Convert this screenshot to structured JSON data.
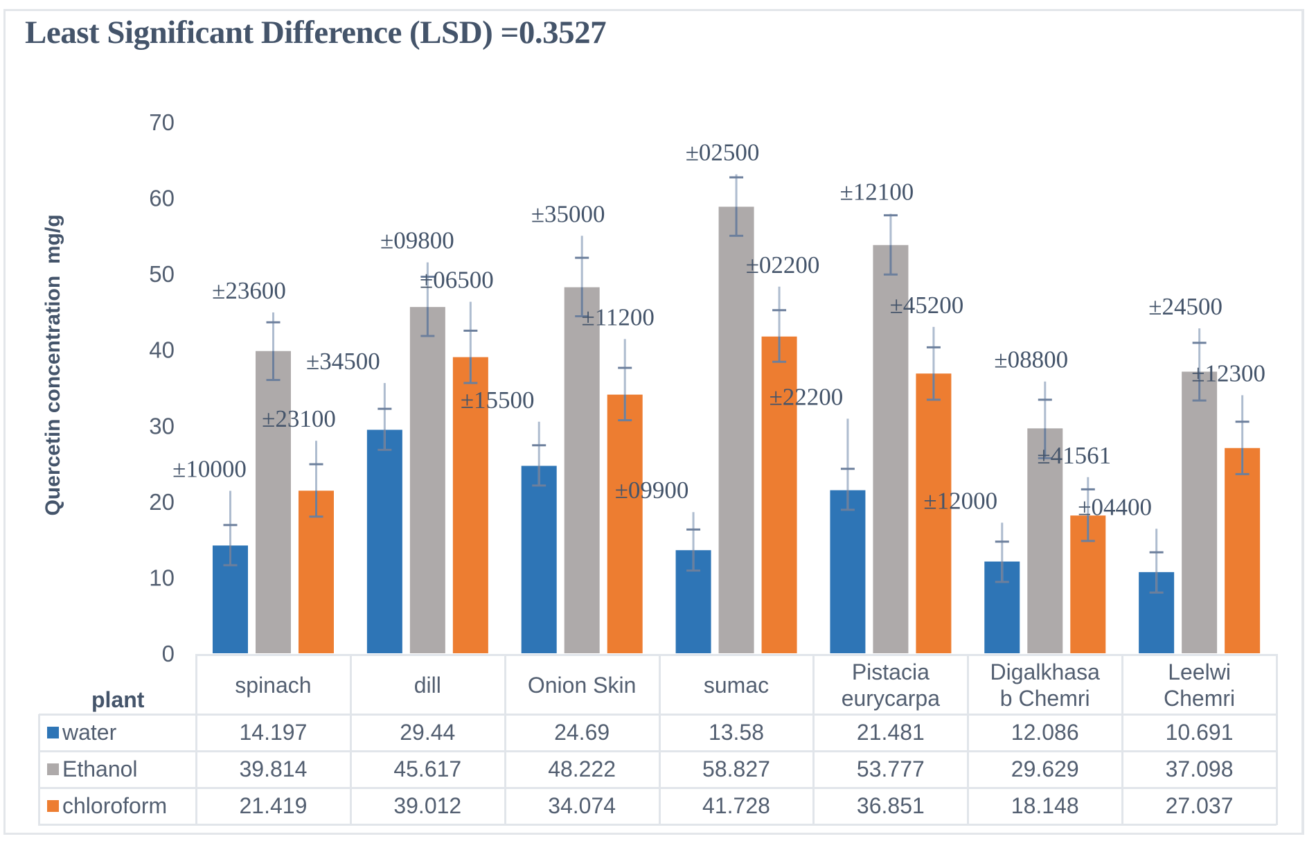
{
  "chart_data": {
    "type": "bar",
    "title": "Least Significant Difference (LSD) =0.3527",
    "xlabel": "plant",
    "ylabel": "Quercetin concentration  mg/g",
    "ylim": [
      0,
      70
    ],
    "yticks": [
      0,
      10,
      20,
      30,
      40,
      50,
      60,
      70
    ],
    "grid": false,
    "legend": "data-table-left",
    "categories": [
      "spinach",
      "dill",
      "Onion Skin",
      "sumac",
      "Pistacia eurycarpa",
      "Digalkhasa b Chemri",
      "Leelwi Chemri"
    ],
    "category_lines": [
      [
        "spinach"
      ],
      [
        "dill"
      ],
      [
        "Onion Skin"
      ],
      [
        "sumac"
      ],
      [
        "Pistacia",
        "eurycarpa"
      ],
      [
        "Digalkhasa",
        "b Chemri"
      ],
      [
        "Leelwi",
        "Chemri"
      ]
    ],
    "series": [
      {
        "name": "water",
        "color": "#2e75b6",
        "values": [
          14.197,
          29.44,
          24.69,
          13.58,
          21.481,
          12.086,
          10.691
        ],
        "value_labels": [
          "14.197",
          "29.44",
          "24.69",
          "13.58",
          "21.481",
          "12.086",
          "10.691"
        ],
        "error_labels": [
          "±10000",
          "±34500",
          "±15500",
          "±09900",
          "±22200",
          "±12000",
          "±04400"
        ],
        "err_upper": [
          16.9,
          32.2,
          27.4,
          16.3,
          24.3,
          14.7,
          13.3
        ],
        "err_lower": [
          11.6,
          26.8,
          22.1,
          10.9,
          18.9,
          9.4,
          8.0
        ],
        "err_top": [
          21.4,
          35.6,
          30.5,
          18.6,
          30.9,
          17.2,
          16.4
        ]
      },
      {
        "name": "Ethanol",
        "color": "#aeaaaa",
        "values": [
          39.814,
          45.617,
          48.222,
          58.827,
          53.777,
          29.629,
          37.098
        ],
        "value_labels": [
          "39.814",
          "45.617",
          "48.222",
          "58.827",
          "53.777",
          "29.629",
          "37.098"
        ],
        "error_labels": [
          "±23600",
          "±09800",
          "±35000",
          "±02500",
          "±12100",
          "±08800",
          "±24500"
        ],
        "err_upper": [
          43.6,
          49.6,
          52.1,
          62.7,
          57.7,
          33.4,
          40.9
        ],
        "err_lower": [
          36.0,
          41.8,
          44.4,
          55.0,
          49.9,
          25.7,
          33.3
        ],
        "err_top": [
          44.9,
          51.5,
          55.0,
          63.1,
          57.9,
          35.8,
          42.8
        ]
      },
      {
        "name": "chloroform",
        "color": "#ed7d31",
        "values": [
          21.419,
          39.012,
          34.074,
          41.728,
          36.851,
          18.148,
          27.037
        ],
        "value_labels": [
          "21.419",
          "39.012",
          "34.074",
          "41.728",
          "36.851",
          "18.148",
          "27.037"
        ],
        "error_labels": [
          "±23100",
          "±06500",
          "±11200",
          "±02200",
          "±45200",
          "±41561",
          "±12300"
        ],
        "err_upper": [
          24.9,
          42.5,
          37.6,
          45.2,
          40.3,
          21.6,
          30.5
        ],
        "err_lower": [
          18.0,
          35.6,
          30.7,
          38.4,
          33.4,
          14.8,
          23.6
        ],
        "err_top": [
          28.0,
          46.3,
          41.4,
          48.3,
          43.0,
          23.2,
          34.0
        ]
      }
    ]
  }
}
